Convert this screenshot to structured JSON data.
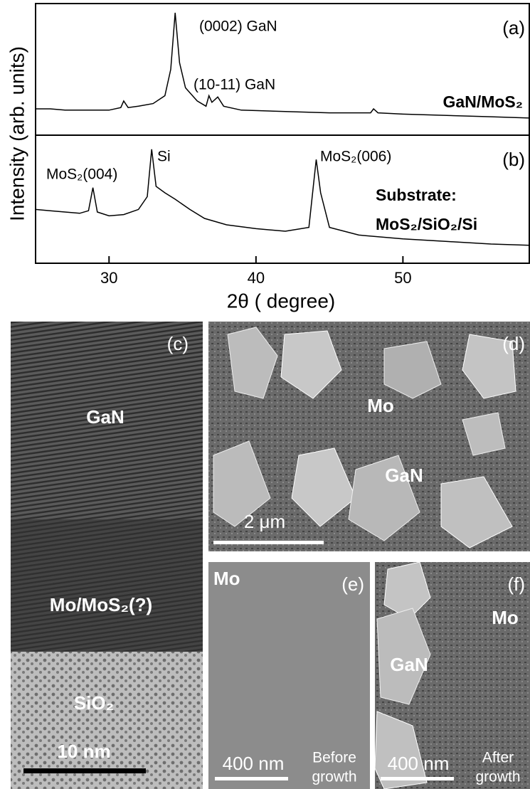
{
  "chart_data": [
    {
      "type": "line",
      "panel_label": "(a)",
      "ylabel": "Intensity (arb. units)",
      "color": "#000000",
      "xlim": [
        25,
        58.6
      ],
      "ylim": [
        0,
        100
      ],
      "x": [
        25,
        26,
        27,
        28,
        29,
        30,
        30.8,
        31,
        31.3,
        32,
        33,
        33.8,
        34.2,
        34.5,
        34.8,
        35.2,
        36,
        36.6,
        36.8,
        37,
        37.2,
        37.4,
        37.8,
        39,
        42,
        45,
        47.8,
        48,
        48.3,
        50,
        53,
        56,
        58.6
      ],
      "values": [
        20,
        20,
        19,
        19,
        19,
        19,
        21,
        26,
        21,
        22,
        24,
        30,
        50,
        93,
        55,
        36,
        26,
        22,
        30,
        25,
        27,
        29,
        22,
        19,
        18,
        17,
        17,
        20,
        17,
        16,
        15,
        14,
        13
      ],
      "annotations": [
        "(0002) GaN",
        "(10-11) GaN",
        "GaN/MoS₂"
      ]
    },
    {
      "type": "line",
      "panel_label": "(b)",
      "xlabel": "2θ ( degree)",
      "color": "#000000",
      "xlim": [
        25,
        58.6
      ],
      "ylim": [
        0,
        100
      ],
      "xticks": [
        30,
        40,
        50
      ],
      "x": [
        25,
        26,
        27,
        28,
        28.6,
        28.9,
        29.2,
        30,
        31,
        32,
        32.6,
        32.9,
        33.2,
        33.8,
        34.5,
        35.5,
        36.5,
        38,
        40,
        42,
        43.6,
        43.9,
        44.1,
        44.4,
        45,
        47,
        50,
        53,
        56,
        58.6
      ],
      "values": [
        42,
        41,
        40,
        39,
        41,
        59,
        40,
        37,
        38,
        42,
        52,
        89,
        60,
        55,
        50,
        42,
        35,
        30,
        27,
        25,
        28,
        60,
        81,
        55,
        28,
        22,
        19,
        17,
        15,
        14
      ],
      "annotations": [
        "MoS₂(004)",
        "Si",
        "MoS₂(006)",
        "Substrate:",
        "MoS₂/SiO₂/Si"
      ]
    }
  ],
  "images": [
    {
      "label": "(c)",
      "texts": [
        "GaN",
        "Mo/MoS₂(?)",
        "SiO₂"
      ],
      "scale_bar": "10 nm"
    },
    {
      "label": "(d)",
      "texts": [
        "Mo",
        "GaN"
      ],
      "scale_bar": "2 μm"
    },
    {
      "label": "(e)",
      "texts": [
        "Mo",
        "Before",
        "growth"
      ],
      "scale_bar": "400 nm"
    },
    {
      "label": "(f)",
      "texts": [
        "Mo",
        "GaN",
        "After",
        "growth"
      ],
      "scale_bar": "400 nm"
    }
  ]
}
